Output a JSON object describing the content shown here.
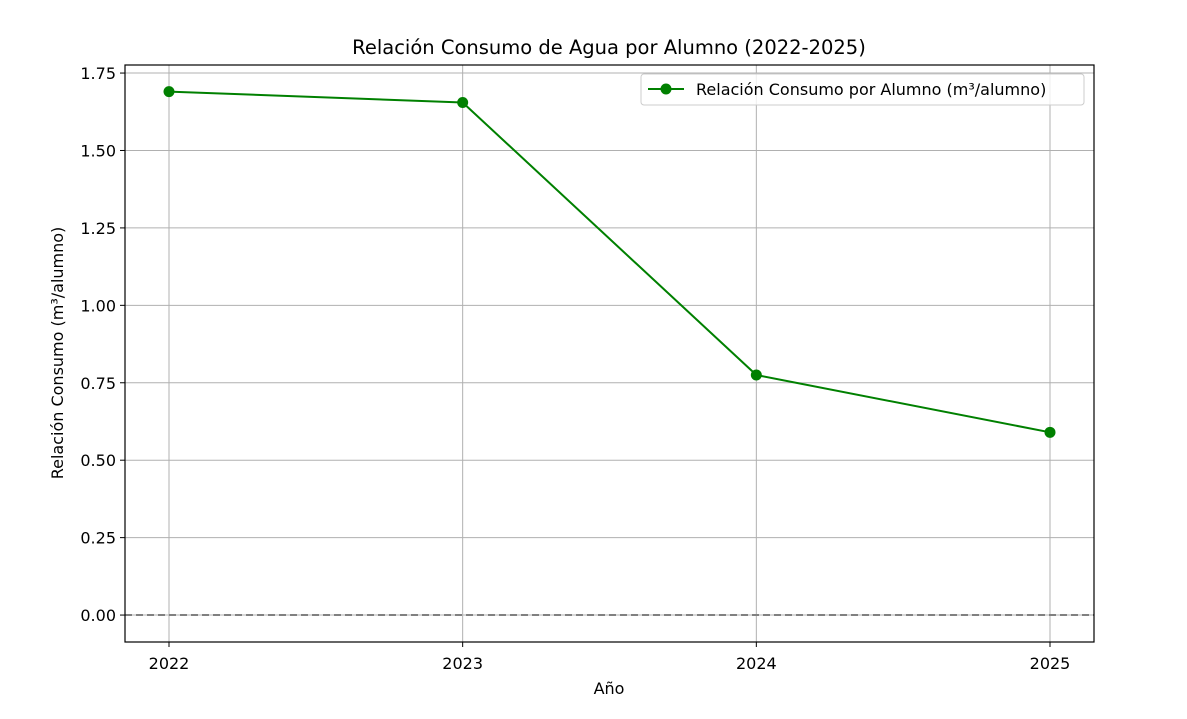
{
  "chart_data": {
    "type": "line",
    "title": "Relación Consumo de Agua por Alumno (2022-2025)",
    "xlabel": "Año",
    "ylabel": "Relación Consumo (m³/alumno)",
    "x": [
      "2022",
      "2023",
      "2024",
      "2025"
    ],
    "series": [
      {
        "name": "Relación Consumo por Alumno (m³/alumno)",
        "values": [
          1.69,
          1.655,
          0.775,
          0.59
        ],
        "color": "#008000",
        "marker": "circle"
      }
    ],
    "ylim": [
      -0.087,
      1.776
    ],
    "yticks": [
      "0.00",
      "0.25",
      "0.50",
      "0.75",
      "1.00",
      "1.25",
      "1.50",
      "1.75"
    ],
    "reference_line": {
      "y": 0,
      "style": "dashed",
      "color": "#808080"
    },
    "grid": true,
    "legend_position": "top-right"
  }
}
